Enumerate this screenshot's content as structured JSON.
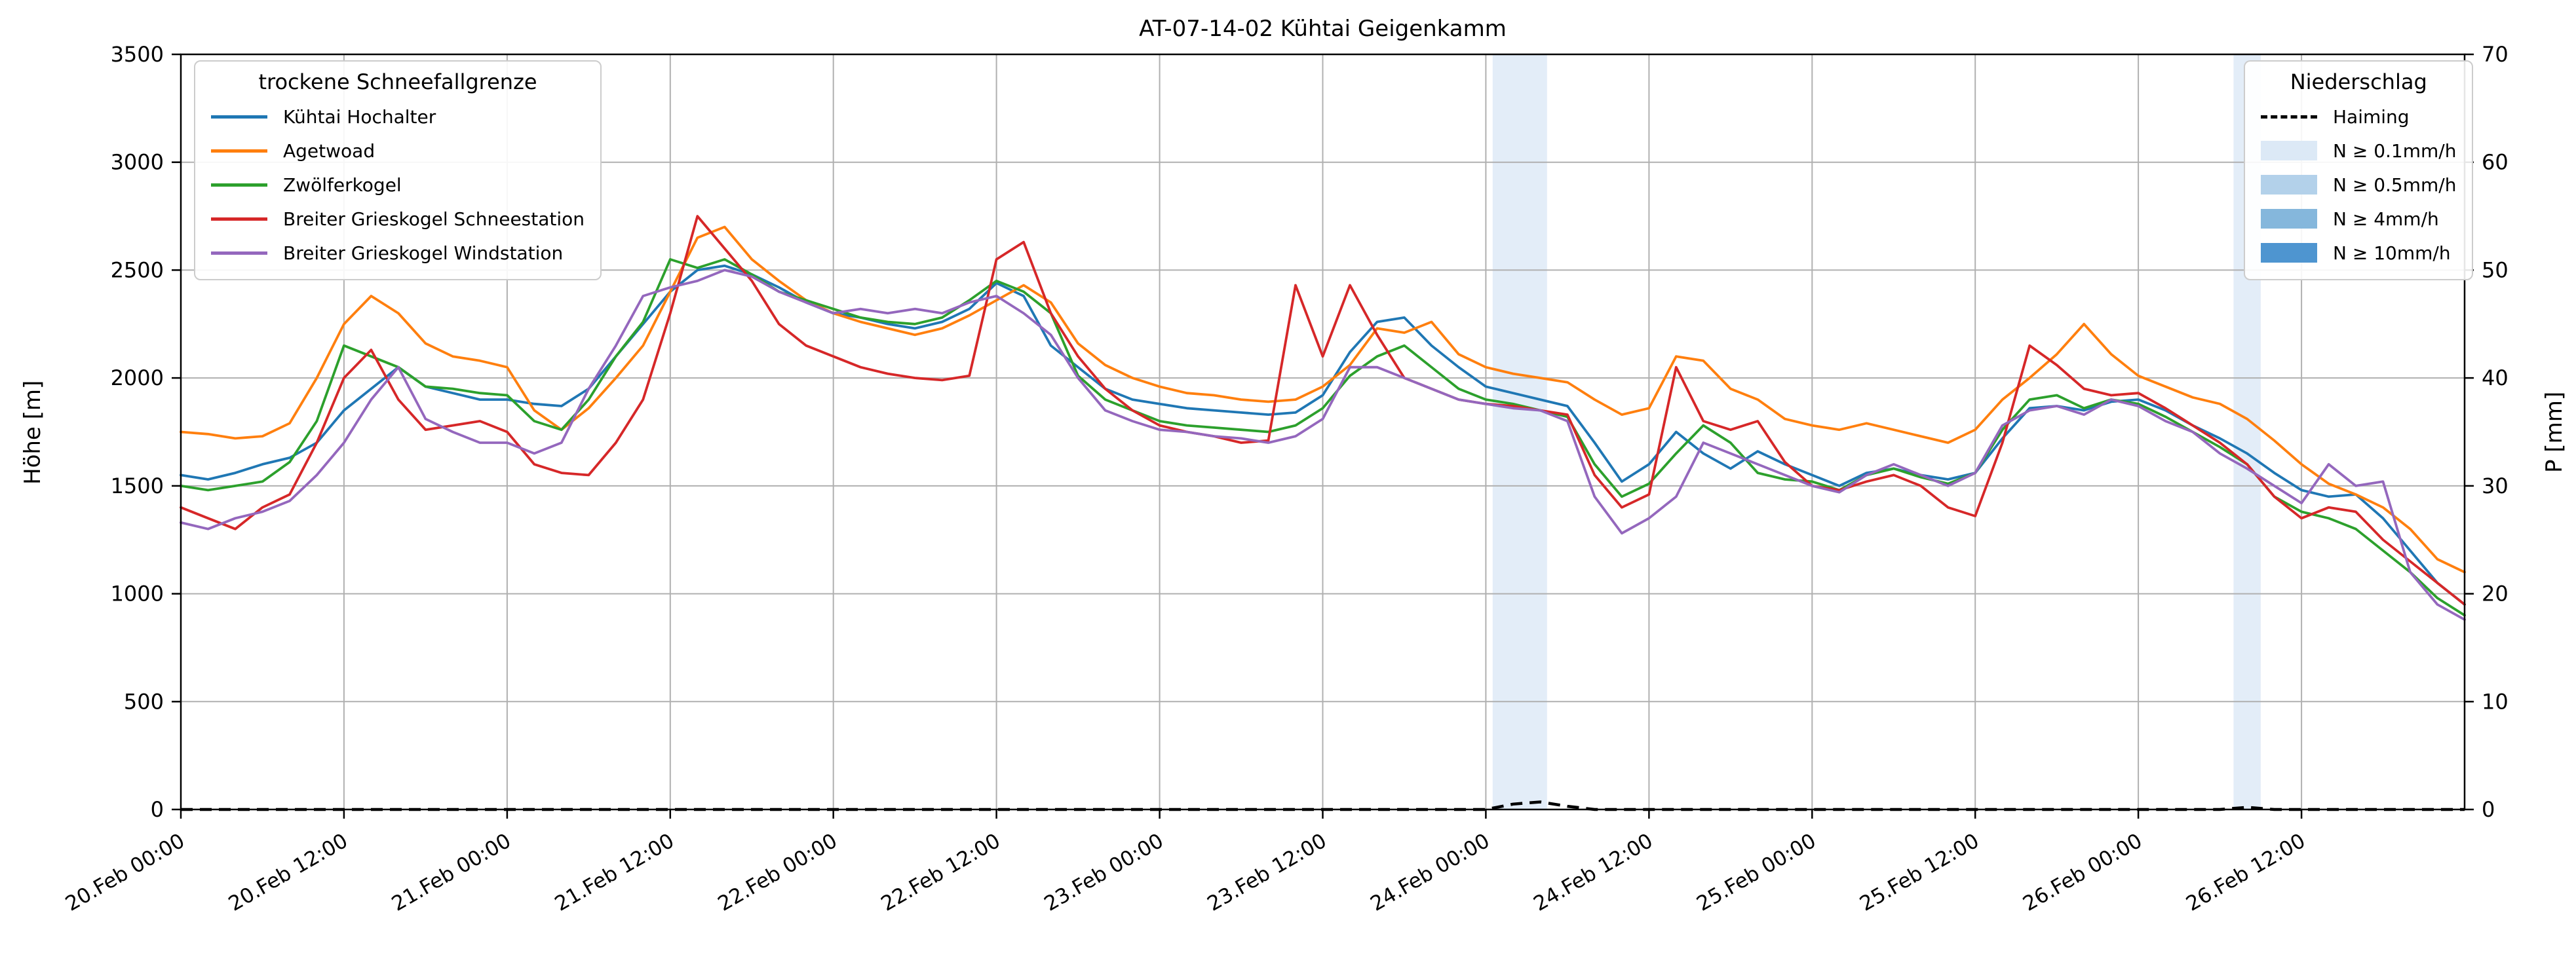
{
  "title": "AT-07-14-02 Kühtai Geigenkamm",
  "left_axis": {
    "label": "Höhe [m]",
    "min": 0,
    "max": 3500,
    "ticks": [
      0,
      500,
      1000,
      1500,
      2000,
      2500,
      3000,
      3500
    ]
  },
  "right_axis": {
    "label": "P [mm]",
    "min": 0,
    "max": 70,
    "ticks": [
      0,
      10,
      20,
      30,
      40,
      50,
      60,
      70
    ]
  },
  "x_axis": {
    "min_hour": 0,
    "max_hour": 168,
    "tick_step_hours": 12,
    "tick_labels": [
      "20.Feb 00:00",
      "20.Feb 12:00",
      "21.Feb 00:00",
      "21.Feb 12:00",
      "22.Feb 00:00",
      "22.Feb 12:00",
      "23.Feb 00:00",
      "23.Feb 12:00",
      "24.Feb 00:00",
      "24.Feb 12:00",
      "25.Feb 00:00",
      "25.Feb 12:00",
      "26.Feb 00:00",
      "26.Feb 12:00"
    ]
  },
  "legend_snowfall": {
    "title": "trockene Schneefallgrenze"
  },
  "legend_precip": {
    "title": "Niederschlag",
    "line_entry": {
      "label": "Haiming",
      "color": "#000000",
      "dashed": true
    },
    "band_entries": [
      {
        "label": "N ≥ 0.1mm/h",
        "level": "0.1",
        "color": "#dce9f6"
      },
      {
        "label": "N ≥ 0.5mm/h",
        "level": "0.5",
        "color": "#b3d1ea"
      },
      {
        "label": "N ≥ 4mm/h",
        "level": "4",
        "color": "#85b7dc"
      },
      {
        "label": "N ≥ 10mm/h",
        "level": "10",
        "color": "#4e95d0"
      }
    ]
  },
  "chart_data": {
    "type": "line",
    "title": "AT-07-14-02 Kühtai Geigenkamm",
    "xlabel": "",
    "ylabel": "Höhe [m]",
    "ylabel_right": "P [mm]",
    "ylim": [
      0,
      3500
    ],
    "ylim_right": [
      0,
      70
    ],
    "grid": true,
    "legend_positions": [
      "upper left",
      "upper right"
    ],
    "x_hours": [
      0,
      2,
      4,
      6,
      8,
      10,
      12,
      14,
      16,
      18,
      20,
      22,
      24,
      26,
      28,
      30,
      32,
      34,
      36,
      38,
      40,
      42,
      44,
      46,
      48,
      50,
      52,
      54,
      56,
      58,
      60,
      62,
      64,
      66,
      68,
      70,
      72,
      74,
      76,
      78,
      80,
      82,
      84,
      86,
      88,
      90,
      92,
      94,
      96,
      98,
      100,
      102,
      104,
      106,
      108,
      110,
      112,
      114,
      116,
      118,
      120,
      122,
      124,
      126,
      128,
      130,
      132,
      134,
      136,
      138,
      140,
      142,
      144,
      146,
      148,
      150,
      152,
      154,
      156,
      158,
      160,
      162,
      164,
      166,
      168
    ],
    "series": [
      {
        "name": "Kühtai Hochalter",
        "color": "#1f77b4",
        "axis": "left",
        "values": [
          1550,
          1530,
          1560,
          1600,
          1630,
          1700,
          1850,
          1950,
          2050,
          1960,
          1930,
          1900,
          1900,
          1880,
          1870,
          1950,
          2100,
          2250,
          2400,
          2500,
          2520,
          2480,
          2420,
          2350,
          2300,
          2280,
          2250,
          2230,
          2260,
          2320,
          2440,
          2380,
          2150,
          2050,
          1950,
          1900,
          1880,
          1860,
          1850,
          1840,
          1830,
          1840,
          1920,
          2120,
          2260,
          2280,
          2150,
          2050,
          1960,
          1930,
          1900,
          1870,
          1700,
          1520,
          1600,
          1750,
          1650,
          1580,
          1660,
          1600,
          1550,
          1500,
          1560,
          1580,
          1550,
          1530,
          1560,
          1720,
          1860,
          1870,
          1850,
          1890,
          1900,
          1850,
          1780,
          1720,
          1650,
          1560,
          1480,
          1450,
          1460,
          1350,
          1200,
          1050,
          950
        ]
      },
      {
        "name": "Agetwoad",
        "color": "#ff7f0e",
        "axis": "left",
        "values": [
          1750,
          1740,
          1720,
          1730,
          1790,
          2000,
          2250,
          2380,
          2300,
          2160,
          2100,
          2080,
          2050,
          1850,
          1760,
          1860,
          2000,
          2150,
          2400,
          2650,
          2700,
          2550,
          2450,
          2360,
          2300,
          2260,
          2230,
          2200,
          2230,
          2290,
          2360,
          2430,
          2350,
          2160,
          2060,
          2000,
          1960,
          1930,
          1920,
          1900,
          1890,
          1900,
          1960,
          2060,
          2230,
          2210,
          2260,
          2110,
          2050,
          2020,
          2000,
          1980,
          1900,
          1830,
          1860,
          2100,
          2080,
          1950,
          1900,
          1810,
          1780,
          1760,
          1790,
          1760,
          1730,
          1700,
          1760,
          1900,
          2000,
          2110,
          2250,
          2110,
          2010,
          1960,
          1910,
          1880,
          1810,
          1710,
          1600,
          1510,
          1460,
          1400,
          1300,
          1160,
          1100
        ]
      },
      {
        "name": "Zwölferkogel",
        "color": "#2ca02c",
        "axis": "left",
        "values": [
          1500,
          1480,
          1500,
          1520,
          1610,
          1800,
          2150,
          2100,
          2050,
          1960,
          1950,
          1930,
          1920,
          1800,
          1760,
          1900,
          2100,
          2260,
          2550,
          2510,
          2550,
          2480,
          2400,
          2360,
          2320,
          2280,
          2260,
          2250,
          2280,
          2360,
          2450,
          2400,
          2300,
          2010,
          1900,
          1850,
          1800,
          1780,
          1770,
          1760,
          1750,
          1780,
          1860,
          2010,
          2100,
          2150,
          2050,
          1950,
          1900,
          1880,
          1850,
          1820,
          1600,
          1450,
          1510,
          1650,
          1780,
          1700,
          1560,
          1530,
          1520,
          1480,
          1550,
          1580,
          1540,
          1510,
          1560,
          1760,
          1900,
          1920,
          1860,
          1900,
          1880,
          1820,
          1750,
          1680,
          1600,
          1450,
          1380,
          1350,
          1300,
          1200,
          1100,
          980,
          900
        ]
      },
      {
        "name": "Breiter Grieskogel Schneestation",
        "color": "#d62728",
        "axis": "left",
        "values": [
          1400,
          1350,
          1300,
          1400,
          1460,
          1700,
          2000,
          2130,
          1900,
          1760,
          1780,
          1800,
          1750,
          1600,
          1560,
          1550,
          1700,
          1900,
          2300,
          2750,
          2600,
          2450,
          2250,
          2150,
          2100,
          2050,
          2020,
          2000,
          1990,
          2010,
          2550,
          2630,
          2300,
          2100,
          1950,
          1850,
          1780,
          1750,
          1730,
          1700,
          1710,
          2430,
          2100,
          2430,
          2200,
          2000,
          1950,
          1900,
          1880,
          1870,
          1850,
          1830,
          1550,
          1400,
          1460,
          2050,
          1800,
          1760,
          1800,
          1610,
          1500,
          1480,
          1520,
          1550,
          1500,
          1400,
          1360,
          1700,
          2150,
          2060,
          1950,
          1920,
          1930,
          1860,
          1780,
          1700,
          1600,
          1450,
          1350,
          1400,
          1380,
          1250,
          1150,
          1050,
          950
        ]
      },
      {
        "name": "Breiter Grieskogel Windstation",
        "color": "#9467bd",
        "axis": "left",
        "values": [
          1330,
          1300,
          1350,
          1380,
          1430,
          1550,
          1700,
          1900,
          2050,
          1810,
          1750,
          1700,
          1700,
          1650,
          1700,
          1950,
          2150,
          2380,
          2420,
          2450,
          2500,
          2470,
          2400,
          2350,
          2300,
          2320,
          2300,
          2320,
          2300,
          2350,
          2380,
          2300,
          2200,
          2000,
          1850,
          1800,
          1760,
          1750,
          1730,
          1720,
          1700,
          1730,
          1810,
          2050,
          2050,
          2000,
          1950,
          1900,
          1880,
          1860,
          1850,
          1800,
          1450,
          1280,
          1350,
          1450,
          1700,
          1650,
          1600,
          1550,
          1500,
          1470,
          1550,
          1600,
          1550,
          1500,
          1560,
          1780,
          1850,
          1870,
          1830,
          1900,
          1870,
          1800,
          1750,
          1650,
          1580,
          1500,
          1420,
          1600,
          1500,
          1520,
          1100,
          950,
          880
        ]
      }
    ],
    "precip_series": {
      "name": "Haiming",
      "color": "#000000",
      "axis": "right",
      "style": "dashed",
      "values": [
        0,
        0,
        0,
        0,
        0,
        0,
        0,
        0,
        0,
        0,
        0,
        0,
        0,
        0,
        0,
        0,
        0,
        0,
        0,
        0,
        0,
        0,
        0,
        0,
        0,
        0,
        0,
        0,
        0,
        0,
        0,
        0,
        0,
        0,
        0,
        0,
        0,
        0,
        0,
        0,
        0,
        0,
        0,
        0,
        0,
        0,
        0,
        0,
        0,
        0.5,
        0.7,
        0.3,
        0,
        0,
        0,
        0,
        0,
        0,
        0,
        0,
        0,
        0,
        0,
        0,
        0,
        0,
        0,
        0,
        0,
        0,
        0,
        0,
        0,
        0,
        0,
        0,
        0.2,
        0,
        0,
        0,
        0,
        0,
        0,
        0,
        0
      ]
    },
    "precip_bands": [
      {
        "start_hour": 96.5,
        "end_hour": 100.5,
        "level": "0.1"
      },
      {
        "start_hour": 151,
        "end_hour": 153,
        "level": "0.1"
      }
    ]
  }
}
